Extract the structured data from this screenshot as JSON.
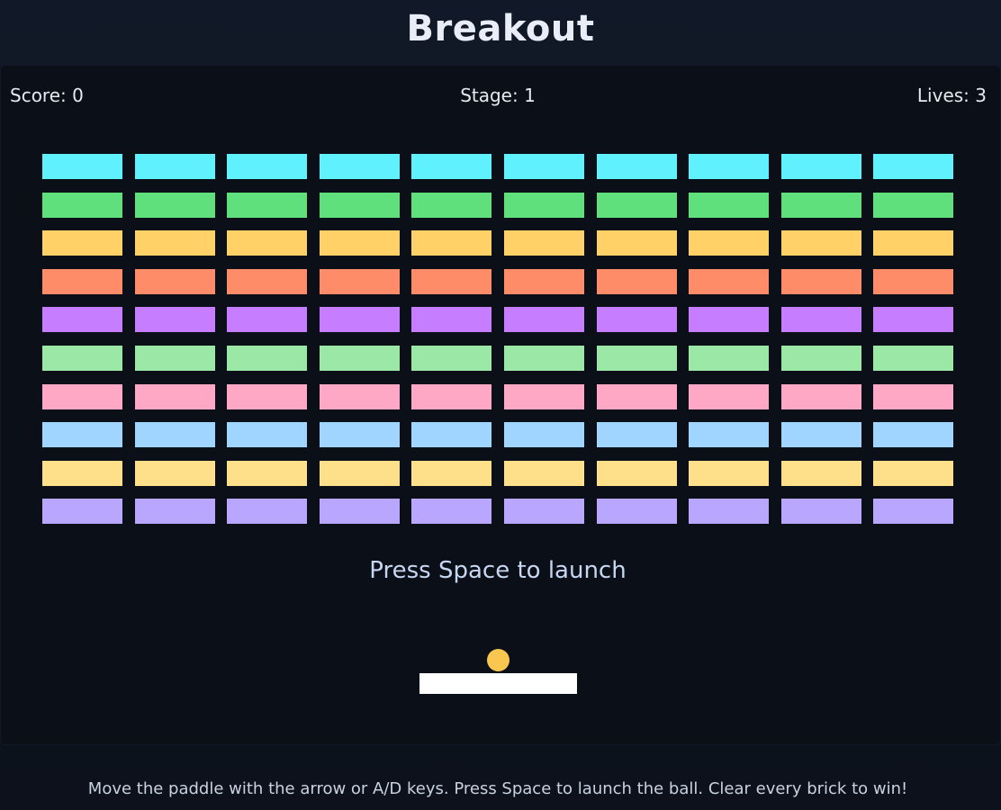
{
  "header": {
    "title": "Breakout"
  },
  "hud": {
    "score": "Score: 0",
    "stage": "Stage: 1",
    "lives": "Lives: 3"
  },
  "bricks": {
    "columns": 10,
    "row_colors": [
      "#60f1ff",
      "#5fe07c",
      "#ffd166",
      "#ff8c69",
      "#c77dff",
      "#9be7a5",
      "#ffa8c5",
      "#a0d5ff",
      "#ffe08a",
      "#b9a7ff"
    ]
  },
  "prompt": "Press Space to launch",
  "ball": {
    "color": "#f9c74f"
  },
  "paddle": {
    "color": "#ffffff"
  },
  "footer": {
    "instructions": "Move the paddle with the arrow or A/D keys. Press Space to launch the ball. Clear every brick to win!"
  }
}
